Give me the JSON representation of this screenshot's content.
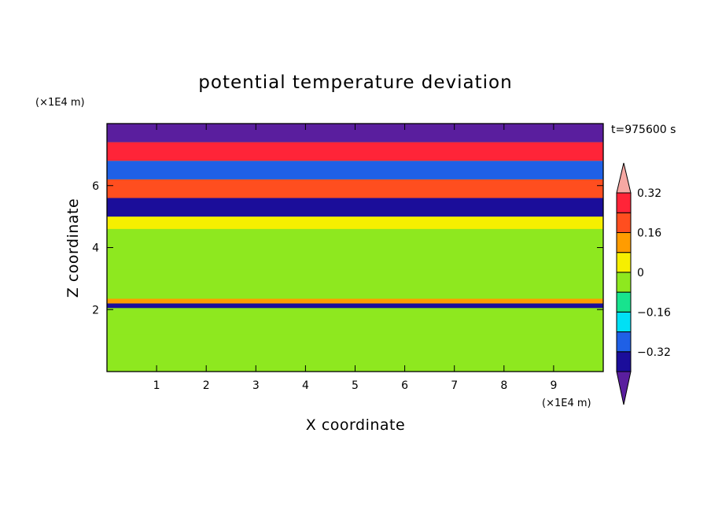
{
  "chart_data": {
    "type": "heatmap",
    "title": "potential temperature deviation",
    "xlabel": "X coordinate",
    "ylabel": "Z coordinate",
    "x_unit": "(×1E4 m)",
    "y_unit": "(×1E4 m)",
    "time_label": "t=975600 s",
    "xlim": [
      0,
      10
    ],
    "ylim": [
      0,
      8
    ],
    "x_ticks": [
      "1",
      "2",
      "3",
      "4",
      "5",
      "6",
      "7",
      "8",
      "9"
    ],
    "y_ticks": [
      "2",
      "4",
      "6"
    ],
    "colorbar": {
      "levels": [
        -0.4,
        -0.32,
        -0.24,
        -0.16,
        -0.08,
        0,
        0.08,
        0.16,
        0.24,
        0.32,
        0.4
      ],
      "tick_labels": [
        "0.32",
        "0.16",
        "0",
        "−0.16",
        "−0.32"
      ],
      "tick_values": [
        0.32,
        0.16,
        0,
        -0.16,
        -0.32
      ],
      "colors": [
        "#5a1e9e",
        "#1b0d9a",
        "#1f60e6",
        "#00e0f5",
        "#18e38e",
        "#8ee81f",
        "#f6ef00",
        "#ff9c00",
        "#ff4e1f",
        "#ff2438",
        "#f6a8a3"
      ],
      "extend": "both"
    },
    "bands": [
      {
        "z": [
          0.0,
          0.1
        ],
        "value": 0.03
      },
      {
        "z": [
          0.1,
          1.2
        ],
        "value": 0.0
      },
      {
        "z": [
          1.2,
          1.8
        ],
        "value": 0.05
      },
      {
        "z": [
          1.8,
          2.05
        ],
        "value": 0.02
      },
      {
        "z": [
          2.05,
          2.2
        ],
        "value": -0.3
      },
      {
        "z": [
          2.2,
          2.35
        ],
        "value": 0.22
      },
      {
        "z": [
          2.35,
          3.3
        ],
        "value": 0.04
      },
      {
        "z": [
          3.3,
          4.6
        ],
        "value": 0.02
      },
      {
        "z": [
          4.6,
          5.0
        ],
        "value": 0.1
      },
      {
        "z": [
          5.0,
          5.6
        ],
        "value": -0.25
      },
      {
        "z": [
          5.6,
          6.2
        ],
        "value": 0.3
      },
      {
        "z": [
          6.2,
          6.8
        ],
        "value": -0.2
      },
      {
        "z": [
          6.8,
          7.4
        ],
        "value": 0.35
      },
      {
        "z": [
          7.4,
          8.0
        ],
        "value": -0.35
      }
    ]
  }
}
